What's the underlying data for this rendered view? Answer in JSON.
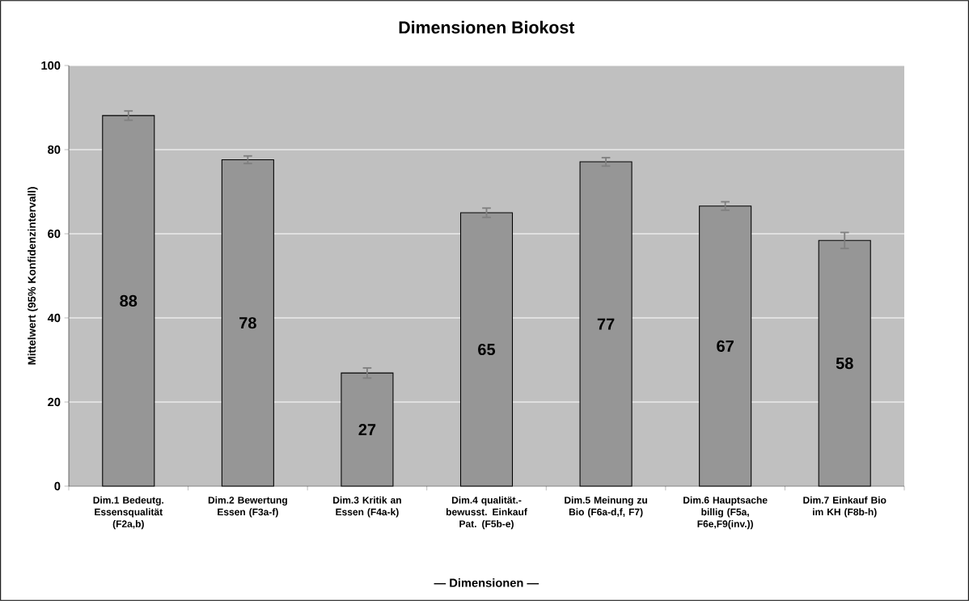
{
  "chart_data": {
    "type": "bar",
    "title": "Dimensionen Biokost",
    "xlabel": "— Dimensionen —",
    "ylabel": "Mittelwert (95% Konfidenzintervall)",
    "categories": [
      "Dim.1 Bedeutg. Essensqualität (F2a,b)",
      "Dim.2 Bewertung Essen (F3a-f)",
      "Dim.3 Kritik an Essen (F4a-k)",
      "Dim.4 qualität.-bewusst. Einkauf Pat. (F5b-e)",
      "Dim.5 Meinung zu Bio (F6a-d,f, F7)",
      "Dim.6 Hauptsache billig (F5a, F6e,F9(inv.))",
      "Dim.7 Einkauf Bio im KH (F8b-h)"
    ],
    "values": [
      88.1,
      77.6,
      26.9,
      65.0,
      77.1,
      66.6,
      58.4
    ],
    "errors": [
      1.1,
      0.9,
      1.2,
      1.1,
      1.0,
      1.0,
      1.9
    ],
    "value_labels": [
      "88",
      "78",
      "27",
      "65",
      "77",
      "67",
      "58"
    ],
    "color": "#969696",
    "ylim": [
      0,
      100
    ],
    "yticks": [
      0,
      20,
      40,
      60,
      80,
      100
    ],
    "grid": "y"
  }
}
